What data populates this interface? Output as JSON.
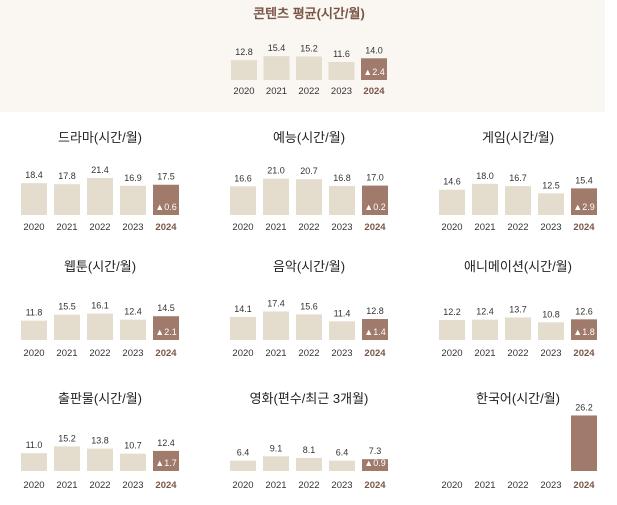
{
  "colors": {
    "bar": "#e4dccd",
    "highlight": "#a07a6a",
    "top_bg": "#faf7f2"
  },
  "chart_data": [
    {
      "type": "bar",
      "title": "콘텐츠 평균(시간/월)",
      "categories": [
        "2020",
        "2021",
        "2022",
        "2023",
        "2024"
      ],
      "values": [
        12.8,
        15.4,
        15.2,
        11.6,
        14.0
      ],
      "change": "▲2.4"
    },
    {
      "type": "bar",
      "title": "드라마(시간/월)",
      "categories": [
        "2020",
        "2021",
        "2022",
        "2023",
        "2024"
      ],
      "values": [
        18.4,
        17.8,
        21.4,
        16.9,
        17.5
      ],
      "change": "▲0.6"
    },
    {
      "type": "bar",
      "title": "예능(시간/월)",
      "categories": [
        "2020",
        "2021",
        "2022",
        "2023",
        "2024"
      ],
      "values": [
        16.6,
        21.0,
        20.7,
        16.8,
        17.0
      ],
      "change": "▲0.2"
    },
    {
      "type": "bar",
      "title": "게임(시간/월)",
      "categories": [
        "2020",
        "2021",
        "2022",
        "2023",
        "2024"
      ],
      "values": [
        14.6,
        18.0,
        16.7,
        12.5,
        15.4
      ],
      "change": "▲2.9"
    },
    {
      "type": "bar",
      "title": "웹툰(시간/월)",
      "categories": [
        "2020",
        "2021",
        "2022",
        "2023",
        "2024"
      ],
      "values": [
        11.8,
        15.5,
        16.1,
        12.4,
        14.5
      ],
      "change": "▲2.1"
    },
    {
      "type": "bar",
      "title": "음악(시간/월)",
      "categories": [
        "2020",
        "2021",
        "2022",
        "2023",
        "2024"
      ],
      "values": [
        14.1,
        17.4,
        15.6,
        11.4,
        12.8
      ],
      "change": "▲1.4"
    },
    {
      "type": "bar",
      "title": "애니메이션(시간/월)",
      "categories": [
        "2020",
        "2021",
        "2022",
        "2023",
        "2024"
      ],
      "values": [
        12.2,
        12.4,
        13.7,
        10.8,
        12.6
      ],
      "change": "▲1.8"
    },
    {
      "type": "bar",
      "title": "출판물(시간/월)",
      "categories": [
        "2020",
        "2021",
        "2022",
        "2023",
        "2024"
      ],
      "values": [
        11.0,
        15.2,
        13.8,
        10.7,
        12.4
      ],
      "change": "▲1.7"
    },
    {
      "type": "bar",
      "title": "영화(편수/최근 3개월)",
      "categories": [
        "2020",
        "2021",
        "2022",
        "2023",
        "2024"
      ],
      "values": [
        6.4,
        9.1,
        8.1,
        6.4,
        7.3
      ],
      "change": "▲0.9"
    },
    {
      "type": "bar",
      "title": "한국어(시간/월)",
      "categories": [
        "2020",
        "2021",
        "2022",
        "2023",
        "2024"
      ],
      "values": [
        null,
        null,
        null,
        null,
        26.2
      ],
      "change": ""
    }
  ]
}
